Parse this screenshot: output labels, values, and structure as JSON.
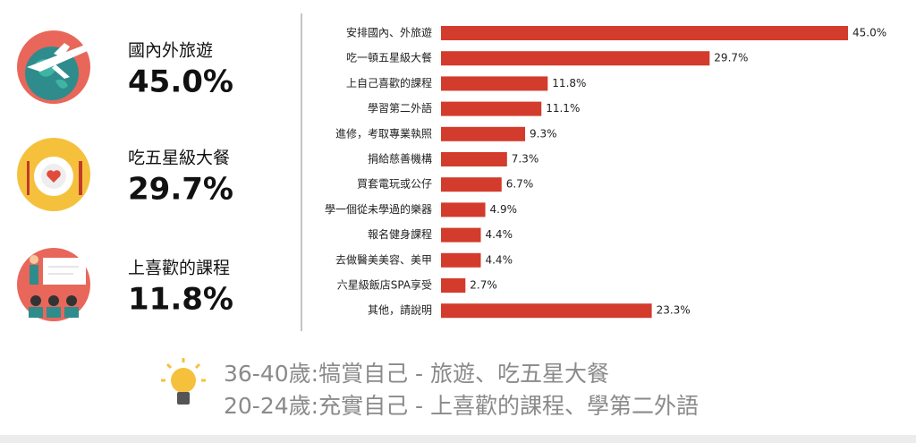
{
  "chart_data": {
    "type": "bar",
    "orientation": "horizontal",
    "categories": [
      "安排國內、外旅遊",
      "吃一頓五星級大餐",
      "上自己喜歡的課程",
      "學習第二外語",
      "進修，考取專業執照",
      "捐給慈善機構",
      "買套電玩或公仔",
      "學一個從未學過的樂器",
      "報名健身課程",
      "去做醫美美容、美甲",
      "六星級飯店SPA享受",
      "其他，請說明"
    ],
    "values": [
      45.0,
      29.7,
      11.8,
      11.1,
      9.3,
      7.3,
      6.7,
      4.9,
      4.4,
      4.4,
      2.7,
      23.3
    ],
    "value_labels": [
      "45.0%",
      "29.7%",
      "11.8%",
      "11.1%",
      "9.3%",
      "7.3%",
      "6.7%",
      "4.9%",
      "4.4%",
      "4.4%",
      "2.7%",
      "23.3%"
    ],
    "color": "#d33b2c"
  },
  "highlights": [
    {
      "label": "國內外旅遊",
      "value": "45.0%"
    },
    {
      "label": "吃五星級大餐",
      "value": "29.7%"
    },
    {
      "label": "上喜歡的課程",
      "value": "11.8%"
    }
  ],
  "notes": [
    "36-40歲:犒賞自己 - 旅遊、吃五星大餐",
    "20-24歲:充實自己 - 上喜歡的課程、學第二外語"
  ]
}
